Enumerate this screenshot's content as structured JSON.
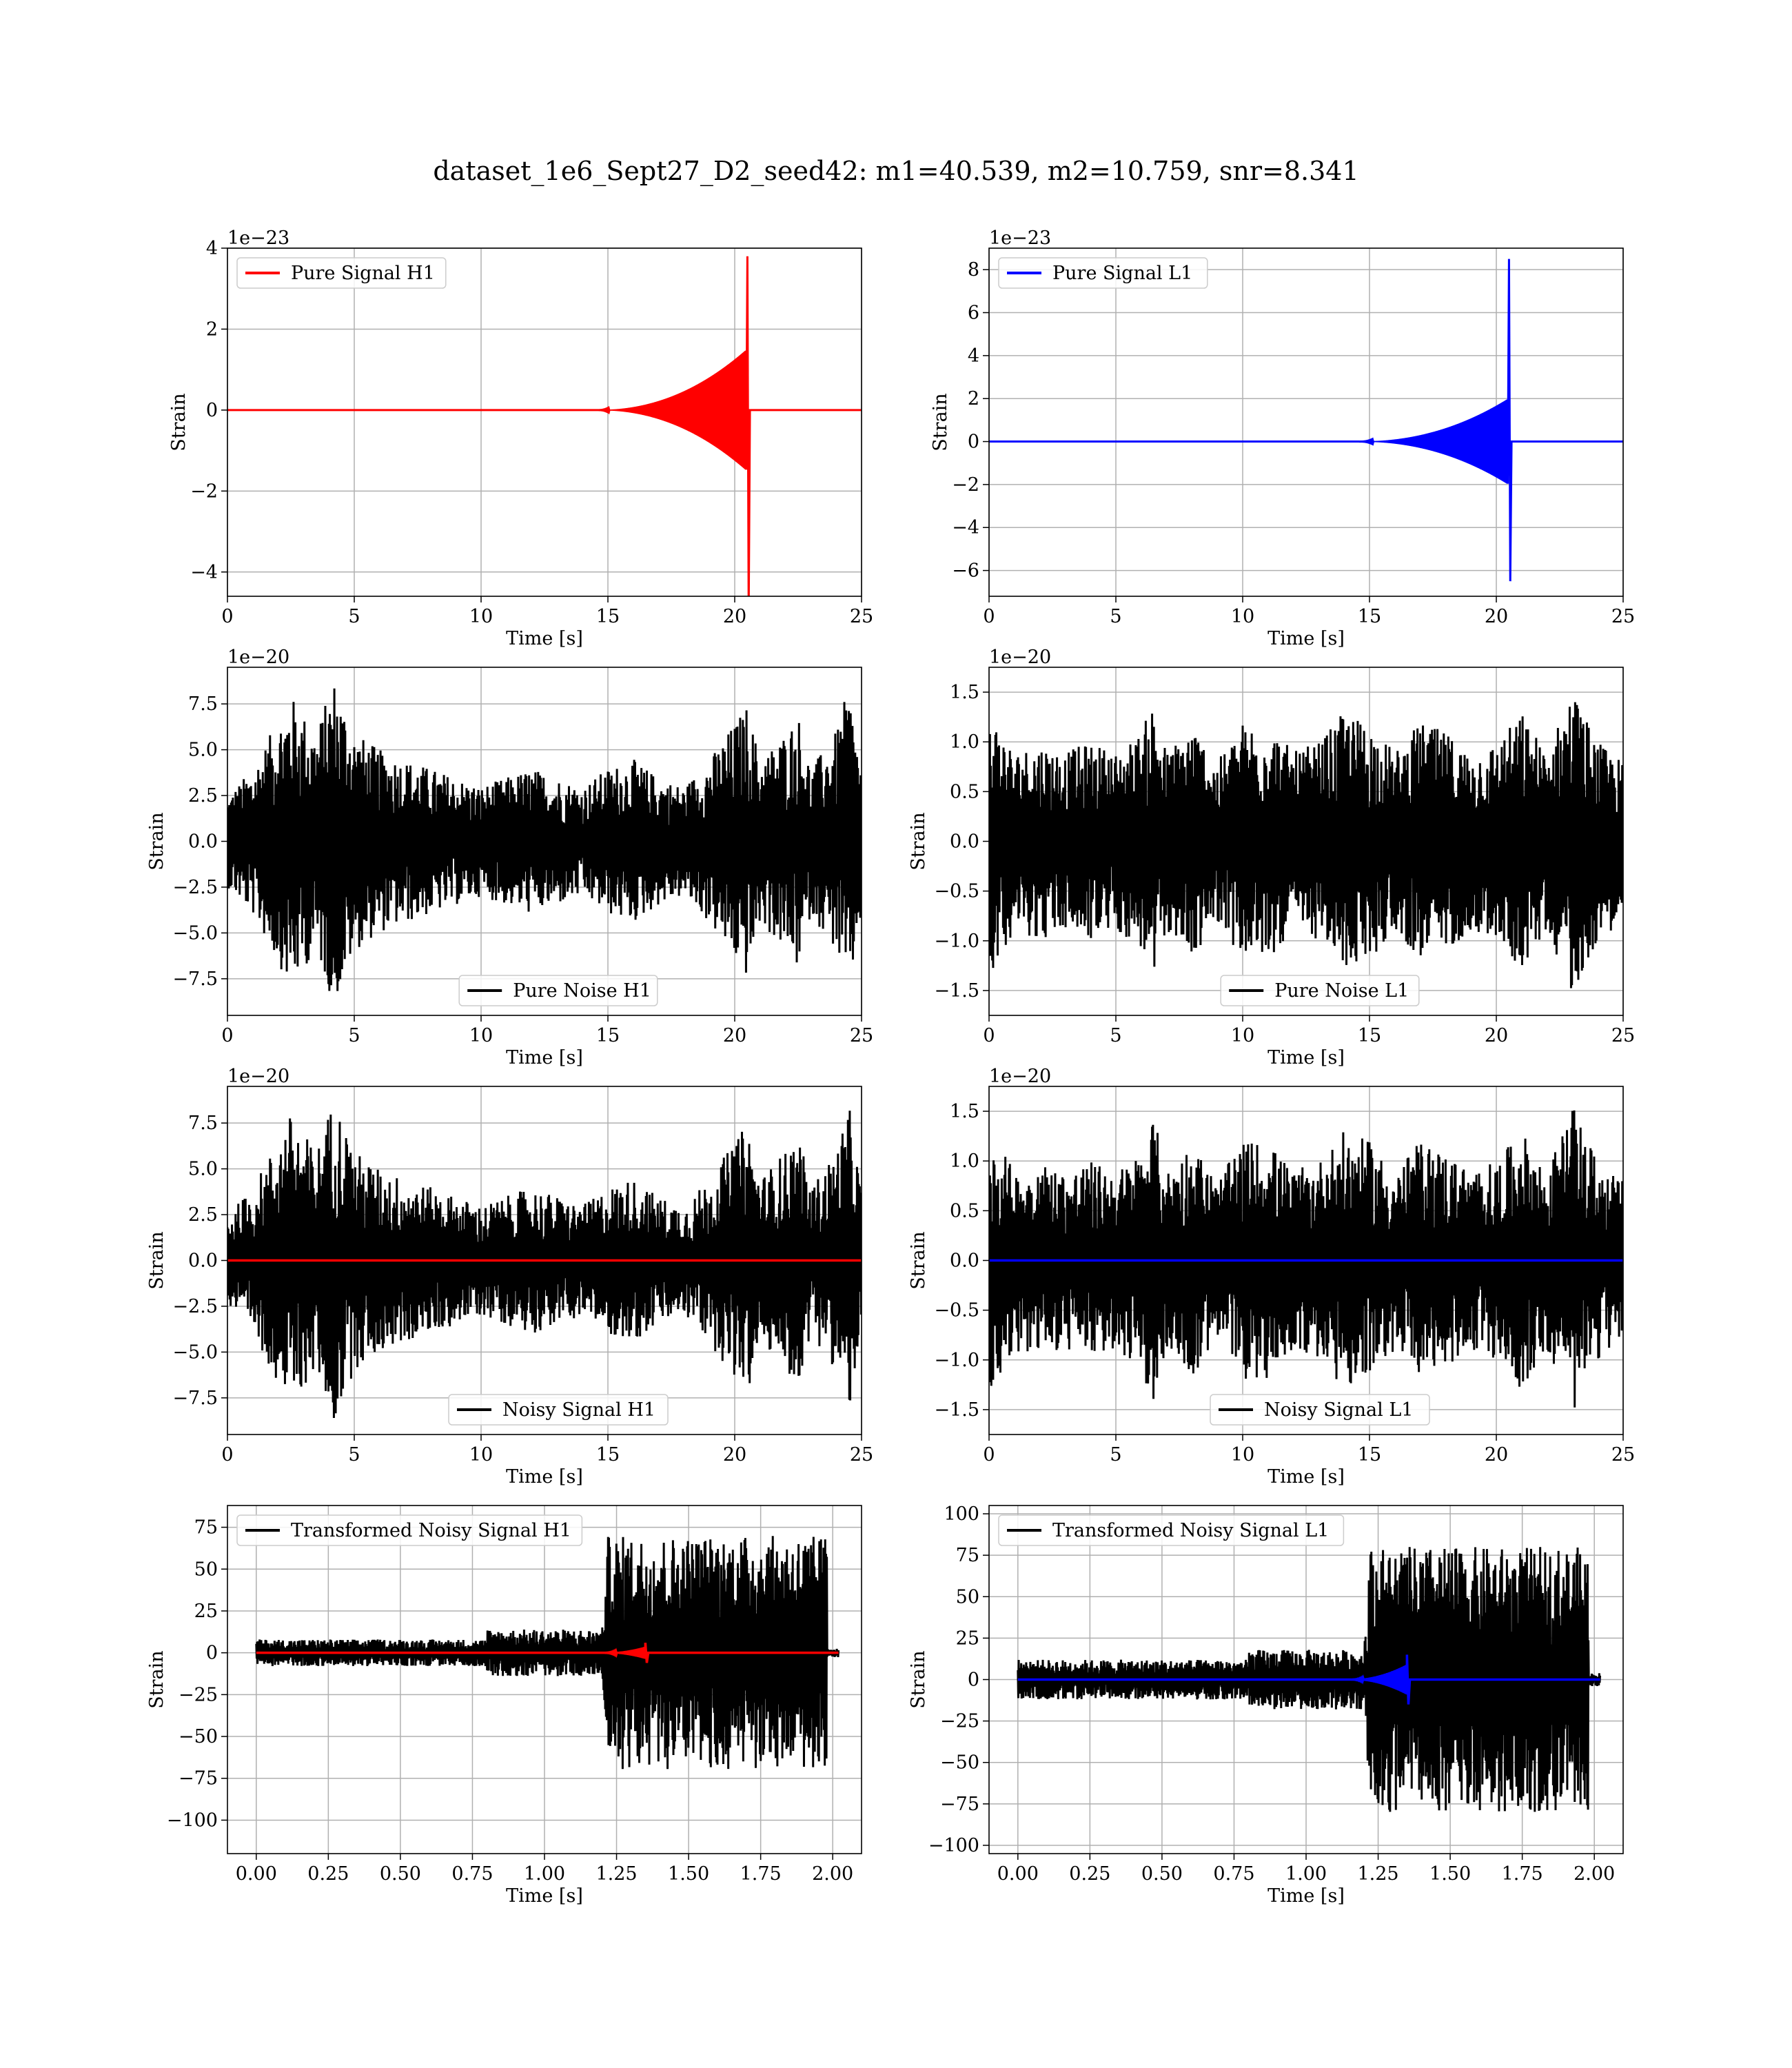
{
  "title": "dataset_1e6_Sept27_D2_seed42: m1=40.539, m2=10.759, snr=8.341",
  "colors": {
    "h1_signal": "#ff0000",
    "l1_signal": "#0000ff",
    "noise": "#000000",
    "grid": "#b0b0b0"
  },
  "chart_data": [
    {
      "type": "line",
      "legend": "Pure Signal H1",
      "legend_position": "upper left",
      "xlabel": "Time [s]",
      "ylabel": "Strain",
      "offset_text": "1e−23",
      "xlim": [
        0,
        25
      ],
      "ylim": [
        -4.6,
        4
      ],
      "xticks": [
        0,
        5,
        10,
        15,
        20,
        25
      ],
      "yticks": [
        -4,
        -2,
        0,
        2,
        4
      ],
      "yticklabels": [
        "−4",
        "−2",
        "0",
        "2",
        "4"
      ],
      "series": [
        {
          "name": "Pure Signal H1",
          "color": "#ff0000",
          "kind": "chirp",
          "start": 14.5,
          "peak_time": 20.5,
          "pre_peak_envelope": 1.5,
          "peak_max": 3.8,
          "peak_min": -5.0
        }
      ]
    },
    {
      "type": "line",
      "legend": "Pure Signal L1",
      "legend_position": "upper left",
      "xlabel": "Time [s]",
      "ylabel": "Strain",
      "offset_text": "1e−23",
      "xlim": [
        0,
        25
      ],
      "ylim": [
        -7.2,
        9
      ],
      "xticks": [
        0,
        5,
        10,
        15,
        20,
        25
      ],
      "yticks": [
        -6,
        -4,
        -2,
        0,
        2,
        4,
        6,
        8
      ],
      "yticklabels": [
        "−6",
        "−4",
        "−2",
        "0",
        "2",
        "4",
        "6",
        "8"
      ],
      "series": [
        {
          "name": "Pure Signal L1",
          "color": "#0000ff",
          "kind": "chirp",
          "start": 14.5,
          "peak_time": 20.5,
          "pre_peak_envelope": 2.0,
          "peak_max": 8.5,
          "peak_min": -6.5
        }
      ]
    },
    {
      "type": "line",
      "legend": "Pure Noise H1",
      "legend_position": "lower center",
      "xlabel": "Time [s]",
      "ylabel": "Strain",
      "offset_text": "1e−20",
      "xlim": [
        0,
        25
      ],
      "ylim": [
        -9.5,
        9.5
      ],
      "xticks": [
        0,
        5,
        10,
        15,
        20,
        25
      ],
      "yticks": [
        -7.5,
        -5,
        -2.5,
        0,
        2.5,
        5,
        7.5
      ],
      "yticklabels": [
        "−7.5",
        "−5.0",
        "−2.5",
        "0.0",
        "2.5",
        "5.0",
        "7.5"
      ],
      "series": [
        {
          "name": "Pure Noise H1",
          "color": "#000000",
          "kind": "noise",
          "envelope": [
            [
              0,
              2.5
            ],
            [
              1,
              4
            ],
            [
              2.5,
              8
            ],
            [
              3.5,
              6
            ],
            [
              4.2,
              9
            ],
            [
              5,
              6
            ],
            [
              6,
              5
            ],
            [
              7,
              4.5
            ],
            [
              8,
              4
            ],
            [
              9,
              3.5
            ],
            [
              10,
              3
            ],
            [
              11,
              3.5
            ],
            [
              12,
              4
            ],
            [
              13,
              3.5
            ],
            [
              14,
              3
            ],
            [
              15,
              4
            ],
            [
              16,
              4.5
            ],
            [
              17,
              3.5
            ],
            [
              18,
              3
            ],
            [
              19,
              4.5
            ],
            [
              20,
              6.5
            ],
            [
              20.5,
              7.5
            ],
            [
              21,
              4.5
            ],
            [
              22,
              6
            ],
            [
              22.5,
              7
            ],
            [
              23,
              4
            ],
            [
              24,
              6
            ],
            [
              24.5,
              8.5
            ],
            [
              25,
              4
            ]
          ]
        }
      ]
    },
    {
      "type": "line",
      "legend": "Pure Noise L1",
      "legend_position": "lower center",
      "xlabel": "Time [s]",
      "ylabel": "Strain",
      "offset_text": "1e−20",
      "xlim": [
        0,
        25
      ],
      "ylim": [
        -1.75,
        1.75
      ],
      "xticks": [
        0,
        5,
        10,
        15,
        20,
        25
      ],
      "yticks": [
        -1.5,
        -1,
        -0.5,
        0,
        0.5,
        1,
        1.5
      ],
      "yticklabels": [
        "−1.5",
        "−1.0",
        "−0.5",
        "0.0",
        "0.5",
        "1.0",
        "1.5"
      ],
      "series": [
        {
          "name": "Pure Noise L1",
          "color": "#000000",
          "kind": "noise",
          "envelope": [
            [
              0,
              1.35
            ],
            [
              1,
              0.9
            ],
            [
              2,
              1.0
            ],
            [
              3,
              0.9
            ],
            [
              4,
              1.0
            ],
            [
              5,
              0.9
            ],
            [
              6,
              1.1
            ],
            [
              6.5,
              1.45
            ],
            [
              7,
              0.9
            ],
            [
              8,
              1.2
            ],
            [
              9,
              0.8
            ],
            [
              10,
              1.2
            ],
            [
              11,
              1.2
            ],
            [
              12,
              0.9
            ],
            [
              13,
              1.0
            ],
            [
              14,
              1.3
            ],
            [
              15,
              1.2
            ],
            [
              16,
              0.9
            ],
            [
              17,
              1.2
            ],
            [
              18,
              1.1
            ],
            [
              19,
              0.9
            ],
            [
              20,
              1.0
            ],
            [
              21,
              1.3
            ],
            [
              22,
              0.9
            ],
            [
              23,
              1.55
            ],
            [
              24,
              1.0
            ],
            [
              25,
              0.8
            ]
          ]
        }
      ]
    },
    {
      "type": "line",
      "legend": "Noisy Signal H1",
      "legend_position": "lower center",
      "xlabel": "Time [s]",
      "ylabel": "Strain",
      "offset_text": "1e−20",
      "xlim": [
        0,
        25
      ],
      "ylim": [
        -9.5,
        9.5
      ],
      "xticks": [
        0,
        5,
        10,
        15,
        20,
        25
      ],
      "yticks": [
        -7.5,
        -5,
        -2.5,
        0,
        2.5,
        5,
        7.5
      ],
      "yticklabels": [
        "−7.5",
        "−5.0",
        "−2.5",
        "0.0",
        "2.5",
        "5.0",
        "7.5"
      ],
      "series": [
        {
          "name": "Noisy Signal H1",
          "color": "#000000",
          "kind": "noise",
          "envelope": [
            [
              0,
              2.5
            ],
            [
              1,
              4
            ],
            [
              2.5,
              8
            ],
            [
              3.5,
              6
            ],
            [
              4.2,
              9
            ],
            [
              5,
              6
            ],
            [
              6,
              5
            ],
            [
              7,
              4.5
            ],
            [
              8,
              4
            ],
            [
              9,
              3.5
            ],
            [
              10,
              3
            ],
            [
              11,
              3.5
            ],
            [
              12,
              4
            ],
            [
              13,
              3.5
            ],
            [
              14,
              3
            ],
            [
              15,
              4
            ],
            [
              16,
              4.5
            ],
            [
              17,
              3.5
            ],
            [
              18,
              3
            ],
            [
              19,
              4.5
            ],
            [
              20,
              6.5
            ],
            [
              20.5,
              7.5
            ],
            [
              21,
              4.5
            ],
            [
              22,
              6
            ],
            [
              22.5,
              7
            ],
            [
              23,
              4
            ],
            [
              24,
              6
            ],
            [
              24.5,
              8.5
            ],
            [
              25,
              4
            ]
          ]
        },
        {
          "color": "#ff0000",
          "kind": "flat",
          "value": 0
        }
      ]
    },
    {
      "type": "line",
      "legend": "Noisy Signal L1",
      "legend_position": "lower center",
      "xlabel": "Time [s]",
      "ylabel": "Strain",
      "offset_text": "1e−20",
      "xlim": [
        0,
        25
      ],
      "ylim": [
        -1.75,
        1.75
      ],
      "xticks": [
        0,
        5,
        10,
        15,
        20,
        25
      ],
      "yticks": [
        -1.5,
        -1,
        -0.5,
        0,
        0.5,
        1,
        1.5
      ],
      "yticklabels": [
        "−1.5",
        "−1.0",
        "−0.5",
        "0.0",
        "0.5",
        "1.0",
        "1.5"
      ],
      "series": [
        {
          "name": "Noisy Signal L1",
          "color": "#000000",
          "kind": "noise",
          "envelope": [
            [
              0,
              1.35
            ],
            [
              1,
              0.9
            ],
            [
              2,
              1.0
            ],
            [
              3,
              0.9
            ],
            [
              4,
              1.0
            ],
            [
              5,
              0.9
            ],
            [
              6,
              1.1
            ],
            [
              6.5,
              1.45
            ],
            [
              7,
              0.9
            ],
            [
              8,
              1.2
            ],
            [
              9,
              0.8
            ],
            [
              10,
              1.2
            ],
            [
              11,
              1.2
            ],
            [
              12,
              0.9
            ],
            [
              13,
              1.0
            ],
            [
              14,
              1.3
            ],
            [
              15,
              1.2
            ],
            [
              16,
              0.9
            ],
            [
              17,
              1.2
            ],
            [
              18,
              1.1
            ],
            [
              19,
              0.9
            ],
            [
              20,
              1.0
            ],
            [
              21,
              1.3
            ],
            [
              22,
              0.9
            ],
            [
              23,
              1.55
            ],
            [
              24,
              1.0
            ],
            [
              25,
              0.8
            ]
          ]
        },
        {
          "color": "#0000ff",
          "kind": "flat",
          "value": 0
        }
      ]
    },
    {
      "type": "line",
      "legend": "Transformed Noisy Signal H1",
      "legend_position": "upper left",
      "xlabel": "Time [s]",
      "ylabel": "Strain",
      "offset_text": "",
      "xlim": [
        -0.1,
        2.1
      ],
      "ylim": [
        -120,
        88
      ],
      "xticks": [
        0,
        0.25,
        0.5,
        0.75,
        1,
        1.25,
        1.5,
        1.75,
        2
      ],
      "xticklabels": [
        "0.00",
        "0.25",
        "0.50",
        "0.75",
        "1.00",
        "1.25",
        "1.50",
        "1.75",
        "2.00"
      ],
      "yticks": [
        -100,
        -75,
        -50,
        -25,
        0,
        25,
        50,
        75
      ],
      "yticklabels": [
        "−100",
        "−75",
        "−50",
        "−25",
        "0",
        "25",
        "50",
        "75"
      ],
      "series": [
        {
          "name": "Transformed Noisy Signal H1",
          "color": "#000000",
          "kind": "noise",
          "envelope": [
            [
              0,
              8
            ],
            [
              0.8,
              8
            ],
            [
              0.8,
              14
            ],
            [
              1.2,
              14
            ],
            [
              1.22,
              70
            ],
            [
              1.5,
              70
            ],
            [
              1.98,
              70
            ],
            [
              1.98,
              3
            ],
            [
              2.02,
              3
            ]
          ]
        },
        {
          "color": "#ff0000",
          "kind": "flat_chirp",
          "value": 0,
          "chirp_start": 1.2,
          "chirp_peak": 1.35,
          "chirp_amp": 6
        }
      ]
    },
    {
      "type": "line",
      "legend": "Transformed Noisy Signal L1",
      "legend_position": "upper left",
      "xlabel": "Time [s]",
      "ylabel": "Strain",
      "offset_text": "",
      "xlim": [
        -0.1,
        2.1
      ],
      "ylim": [
        -105,
        105
      ],
      "xticks": [
        0,
        0.25,
        0.5,
        0.75,
        1,
        1.25,
        1.5,
        1.75,
        2
      ],
      "xticklabels": [
        "0.00",
        "0.25",
        "0.50",
        "0.75",
        "1.00",
        "1.25",
        "1.50",
        "1.75",
        "2.00"
      ],
      "yticks": [
        -100,
        -75,
        -50,
        -25,
        0,
        25,
        50,
        75,
        100
      ],
      "yticklabels": [
        "−100",
        "−75",
        "−50",
        "−25",
        "0",
        "25",
        "50",
        "75",
        "100"
      ],
      "series": [
        {
          "name": "Transformed Noisy Signal L1",
          "color": "#000000",
          "kind": "noise",
          "envelope": [
            [
              0,
              12
            ],
            [
              0.8,
              12
            ],
            [
              0.8,
              18
            ],
            [
              1.2,
              18
            ],
            [
              1.22,
              80
            ],
            [
              1.5,
              80
            ],
            [
              1.98,
              80
            ],
            [
              1.98,
              4
            ],
            [
              2.02,
              4
            ]
          ]
        },
        {
          "color": "#0000ff",
          "kind": "flat_chirp",
          "value": 0,
          "chirp_start": 1.15,
          "chirp_peak": 1.35,
          "chirp_amp": 15
        }
      ]
    }
  ]
}
